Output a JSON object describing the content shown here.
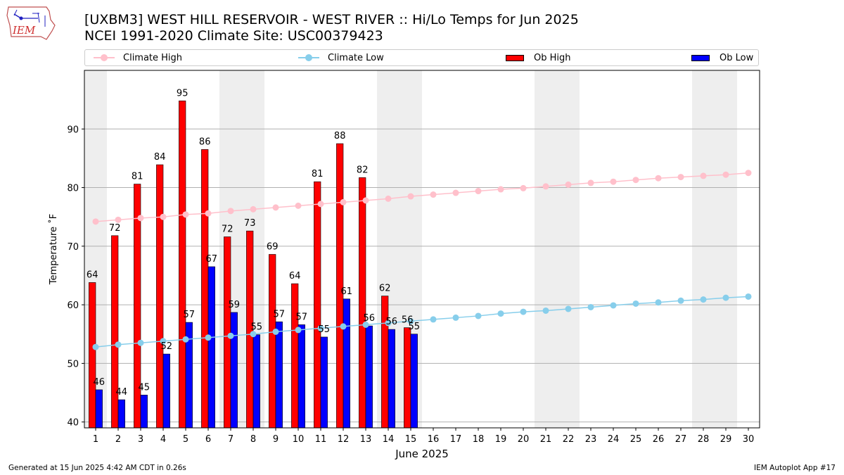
{
  "header": {
    "title_line1": "[UXBM3] WEST HILL RESERVOIR - WEST RIVER :: Hi/Lo Temps for Jun 2025",
    "title_line2": "NCEI 1991-2020 Climate Site: USC00379423",
    "logo_text": "IEM"
  },
  "legend": {
    "placement": "top",
    "items": [
      {
        "label": "Climate High",
        "kind": "line",
        "color": "#ffc0cb"
      },
      {
        "label": "Climate Low",
        "kind": "line",
        "color": "#87ceeb"
      },
      {
        "label": "Ob High",
        "kind": "bar",
        "color": "#ff0000"
      },
      {
        "label": "Ob Low",
        "kind": "bar",
        "color": "#0000ff"
      }
    ]
  },
  "footer": {
    "left": "Generated at 15 Jun 2025 4:42 AM CDT in 0.26s",
    "right": "IEM Autoplot App #17"
  },
  "chart_data": {
    "type": "bar",
    "title": "[UXBM3] WEST HILL RESERVOIR - WEST RIVER :: Hi/Lo Temps for Jun 2025",
    "subtitle": "NCEI 1991-2020 Climate Site: USC00379423",
    "xlabel": "June 2025",
    "ylabel": "Temperature ˚F",
    "ylim": [
      39,
      100
    ],
    "xlim": [
      0.5,
      30.5
    ],
    "yticks": [
      40,
      50,
      60,
      70,
      80,
      90
    ],
    "grid": "horizontal",
    "days": [
      1,
      2,
      3,
      4,
      5,
      6,
      7,
      8,
      9,
      10,
      11,
      12,
      13,
      14,
      15,
      16,
      17,
      18,
      19,
      20,
      21,
      22,
      23,
      24,
      25,
      26,
      27,
      28,
      29,
      30
    ],
    "weekend_shading": [
      [
        0.5,
        1.5
      ],
      [
        6.5,
        8.5
      ],
      [
        13.5,
        15.5
      ],
      [
        20.5,
        22.5
      ],
      [
        27.5,
        29.5
      ]
    ],
    "series": [
      {
        "name": "Ob High",
        "type": "bar",
        "color": "#ff0000",
        "values": [
          63.8,
          71.8,
          80.6,
          83.9,
          94.8,
          86.5,
          71.6,
          72.6,
          68.6,
          63.6,
          81.0,
          87.5,
          81.7,
          61.5,
          56.1
        ],
        "labels": [
          "64",
          "72",
          "81",
          "84",
          "95",
          "86",
          "72",
          "73",
          "69",
          "64",
          "81",
          "88",
          "82",
          "62",
          "56"
        ]
      },
      {
        "name": "Ob Low",
        "type": "bar",
        "color": "#0000ff",
        "values": [
          45.5,
          43.8,
          44.6,
          51.6,
          57.0,
          66.5,
          58.7,
          54.9,
          57.1,
          56.6,
          54.5,
          61.0,
          56.4,
          55.8,
          55.0
        ],
        "labels": [
          "46",
          "44",
          "45",
          "52",
          "57",
          "67",
          "59",
          "55",
          "57",
          "57",
          "55",
          "61",
          "56",
          "56",
          "55"
        ]
      },
      {
        "name": "Climate High",
        "type": "line",
        "color": "#ffc0cb",
        "values": [
          74.2,
          74.5,
          74.8,
          75.0,
          75.4,
          75.6,
          76.0,
          76.3,
          76.6,
          76.9,
          77.2,
          77.5,
          77.8,
          78.1,
          78.5,
          78.8,
          79.1,
          79.4,
          79.7,
          79.9,
          80.2,
          80.5,
          80.8,
          81.0,
          81.3,
          81.6,
          81.8,
          82.0,
          82.2,
          82.5
        ]
      },
      {
        "name": "Climate Low",
        "type": "line",
        "color": "#87ceeb",
        "values": [
          52.8,
          53.2,
          53.5,
          53.8,
          54.1,
          54.4,
          54.7,
          55.0,
          55.4,
          55.7,
          56.0,
          56.3,
          56.6,
          56.9,
          57.2,
          57.5,
          57.8,
          58.1,
          58.5,
          58.8,
          59.0,
          59.3,
          59.6,
          59.9,
          60.2,
          60.4,
          60.7,
          60.9,
          61.2,
          61.4
        ]
      }
    ]
  }
}
